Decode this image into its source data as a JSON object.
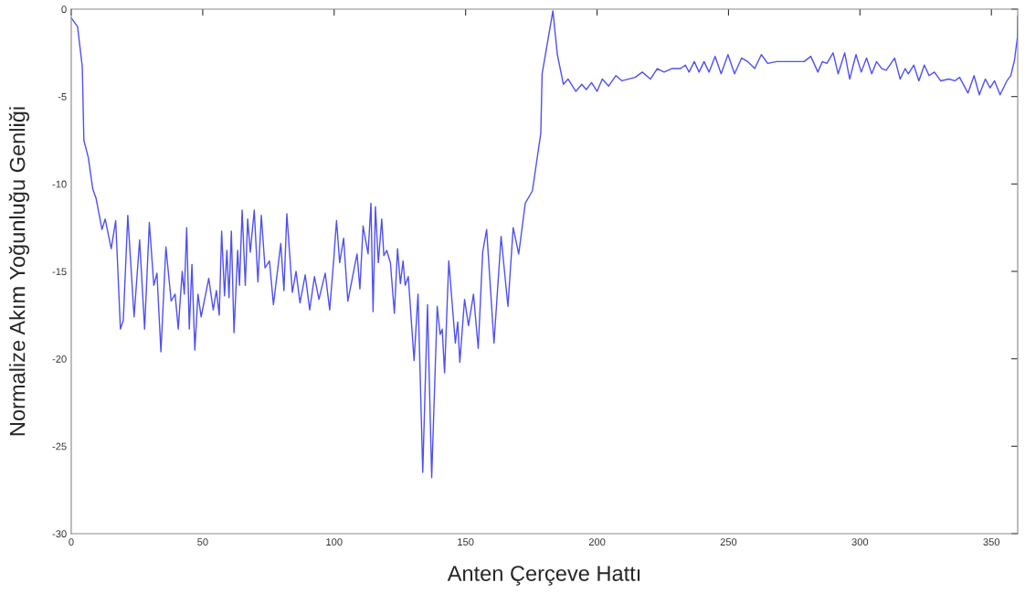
{
  "chart_data": {
    "type": "line",
    "xlabel": "Anten Çerçeve Hattı",
    "ylabel": "Normalize Akım Yoğunluğu Genliği",
    "xlim": [
      0,
      360
    ],
    "xticks": [
      0,
      50,
      100,
      150,
      200,
      250,
      300,
      350
    ],
    "ylim": [
      -30,
      0
    ],
    "yticks": [
      -30,
      -25,
      -20,
      -15,
      -10,
      -5,
      0
    ],
    "grid": false,
    "legend": false,
    "marker": "none",
    "line_style": "solid",
    "series": [
      {
        "color": "#4f4ff5",
        "x": [
          0,
          2.4,
          4.2,
          4.8,
          6.5,
          8.2,
          9.4,
          11.7,
          12.9,
          15.2,
          16.9,
          18.7,
          19.8,
          21.5,
          23.9,
          26,
          27.9,
          29.7,
          31.4,
          32.6,
          34.1,
          36,
          38,
          39.5,
          40.7,
          42.2,
          43,
          43.9,
          44.9,
          45.9,
          47,
          48.2,
          49.4,
          52.3,
          54,
          55.2,
          56.3,
          57.2,
          58.3,
          59.2,
          60,
          60.9,
          61.9,
          63.3,
          64,
          65,
          66.2,
          67.1,
          68.1,
          69.6,
          71,
          72.3,
          73.7,
          75.4,
          76.9,
          79.7,
          80.9,
          82,
          84.1,
          85.5,
          87,
          89,
          90.7,
          92.5,
          94.2,
          96.6,
          98.3,
          99.8,
          100.9,
          102.1,
          103.6,
          105.2,
          108.7,
          109.8,
          111,
          112.9,
          114,
          114.8,
          115.7,
          116.8,
          118.1,
          118.9,
          120,
          121.4,
          122.9,
          124.1,
          125.2,
          126.2,
          127,
          128.2,
          130.4,
          131.9,
          133.7,
          135.5,
          137.1,
          139.2,
          140.3,
          141.1,
          142,
          143.6,
          146.1,
          147,
          147.8,
          149.6,
          151.1,
          153,
          154.8,
          156.5,
          158,
          160.8,
          163.5,
          166.1,
          168.1,
          170.2,
          172.7,
          175.4,
          178.6,
          179.1,
          183.2,
          184.9,
          187.2,
          189,
          191.9,
          194.2,
          195.9,
          197.9,
          200,
          202,
          204.4,
          207.2,
          209.5,
          214.5,
          217.2,
          220.3,
          222.9,
          225.5,
          228.4,
          231.8,
          233.6,
          235,
          237,
          238.8,
          240.7,
          242.6,
          244.9,
          247.2,
          249.8,
          252.3,
          255,
          257.3,
          260,
          262.5,
          264.9,
          268.3,
          273,
          276.4,
          278.8,
          281.3,
          284,
          285.7,
          287.4,
          289.8,
          291.7,
          294.2,
          296.1,
          298.5,
          300.5,
          302.5,
          304.5,
          306.3,
          308.3,
          310,
          313.2,
          315.3,
          317.2,
          318.4,
          320.5,
          322.4,
          324.5,
          326.3,
          328.3,
          330.7,
          333.8,
          336.1,
          337.9,
          341.1,
          343.4,
          345.4,
          347.7,
          349.5,
          351.2,
          353.3,
          355.9,
          357.4,
          358.8,
          359.9,
          360
        ],
        "values": [
          -0.5,
          -1.0,
          -3.3,
          -7.5,
          -8.5,
          -10.3,
          -10.8,
          -12.6,
          -12.0,
          -13.7,
          -12.1,
          -18.3,
          -17.8,
          -11.8,
          -17.6,
          -13.2,
          -18.3,
          -12.2,
          -15.8,
          -15.1,
          -19.6,
          -13.6,
          -16.7,
          -16.3,
          -18.3,
          -15.0,
          -16.3,
          -12.5,
          -18.3,
          -14.6,
          -19.5,
          -16.3,
          -17.6,
          -15.4,
          -17.2,
          -16.1,
          -17.5,
          -12.7,
          -16.4,
          -13.8,
          -16.5,
          -12.7,
          -18.5,
          -13.8,
          -15.8,
          -11.5,
          -15.8,
          -12.0,
          -13.9,
          -11.5,
          -15.6,
          -11.8,
          -14.8,
          -14.4,
          -16.9,
          -13.4,
          -16.1,
          -11.7,
          -16.2,
          -15.0,
          -16.8,
          -15.2,
          -17.2,
          -15.3,
          -16.6,
          -15.1,
          -17.2,
          -14.4,
          -12.1,
          -14.5,
          -13.1,
          -16.7,
          -14.0,
          -16.0,
          -12.4,
          -14.0,
          -11.1,
          -17.3,
          -11.3,
          -14.5,
          -12.0,
          -14.1,
          -13.8,
          -14.5,
          -17.4,
          -13.7,
          -15.7,
          -14.4,
          -15.8,
          -15.3,
          -20.1,
          -16.3,
          -26.5,
          -16.9,
          -26.8,
          -17.0,
          -18.6,
          -18.3,
          -20.8,
          -14.4,
          -19.1,
          -17.9,
          -20.2,
          -16.6,
          -18.1,
          -16.3,
          -19.4,
          -13.9,
          -12.6,
          -19.1,
          -13.0,
          -17.0,
          -12.5,
          -14.0,
          -11.1,
          -10.4,
          -7.1,
          -3.7,
          -0.1,
          -2.6,
          -4.3,
          -4.0,
          -4.7,
          -4.3,
          -4.6,
          -4.2,
          -4.7,
          -4.0,
          -4.4,
          -3.8,
          -4.1,
          -3.9,
          -3.6,
          -4.0,
          -3.4,
          -3.6,
          -3.4,
          -3.4,
          -3.2,
          -3.6,
          -3.0,
          -3.6,
          -3.0,
          -3.6,
          -2.7,
          -3.7,
          -2.6,
          -3.7,
          -2.8,
          -3.0,
          -3.4,
          -2.6,
          -3.1,
          -3.0,
          -3.0,
          -3.0,
          -3.0,
          -2.7,
          -3.6,
          -3.0,
          -3.1,
          -2.5,
          -3.7,
          -2.5,
          -4.0,
          -2.6,
          -3.6,
          -2.8,
          -3.7,
          -3.0,
          -3.4,
          -3.5,
          -2.8,
          -4.0,
          -3.4,
          -3.7,
          -3.2,
          -4.1,
          -3.2,
          -3.8,
          -3.6,
          -4.1,
          -4.0,
          -4.1,
          -3.9,
          -4.8,
          -3.8,
          -4.9,
          -4.0,
          -4.5,
          -4.1,
          -4.9,
          -4.1,
          -3.8,
          -2.9,
          -1.6,
          -0.4
        ]
      }
    ]
  }
}
